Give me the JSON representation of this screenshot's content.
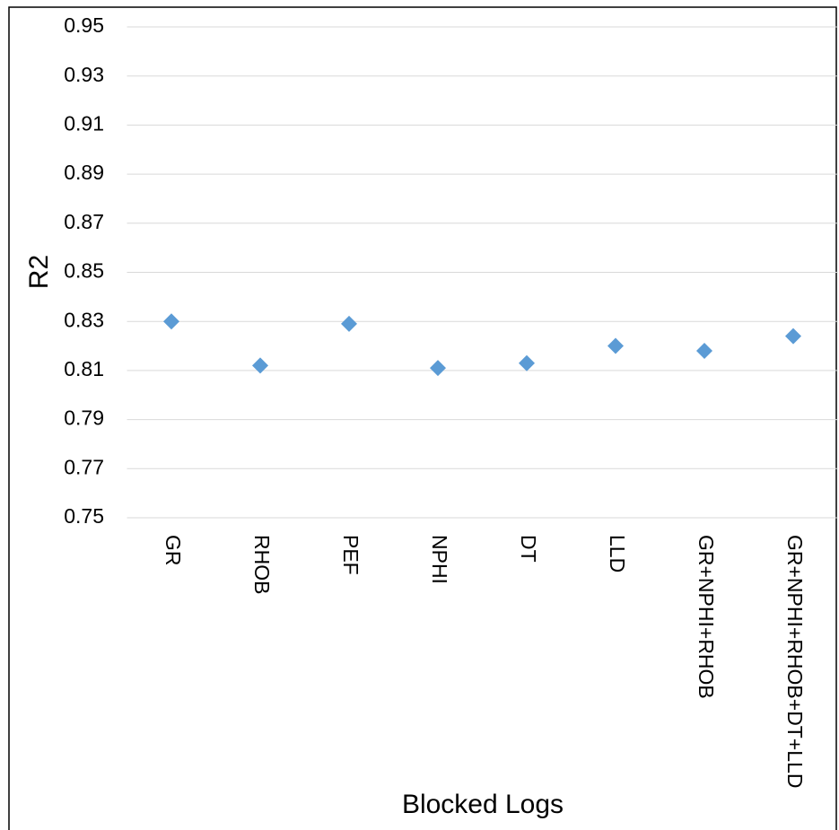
{
  "chart_data": {
    "type": "scatter",
    "x_label": "Blocked Logs",
    "y_label": "R2",
    "categories": [
      "GR",
      "RHOB",
      "PEF",
      "NPHI",
      "DT",
      "LLD",
      "GR+NPHI+RHOB",
      "GR+NPHI+RHOB+DT+LLD"
    ],
    "values": [
      0.83,
      0.812,
      0.829,
      0.811,
      0.813,
      0.82,
      0.818,
      0.824
    ],
    "color": "#5b9bd5",
    "ylim": [
      0.75,
      0.95
    ],
    "yticks": [
      0.75,
      0.77,
      0.79,
      0.81,
      0.83,
      0.85,
      0.87,
      0.89,
      0.91,
      0.93,
      0.95
    ],
    "grid": true
  }
}
